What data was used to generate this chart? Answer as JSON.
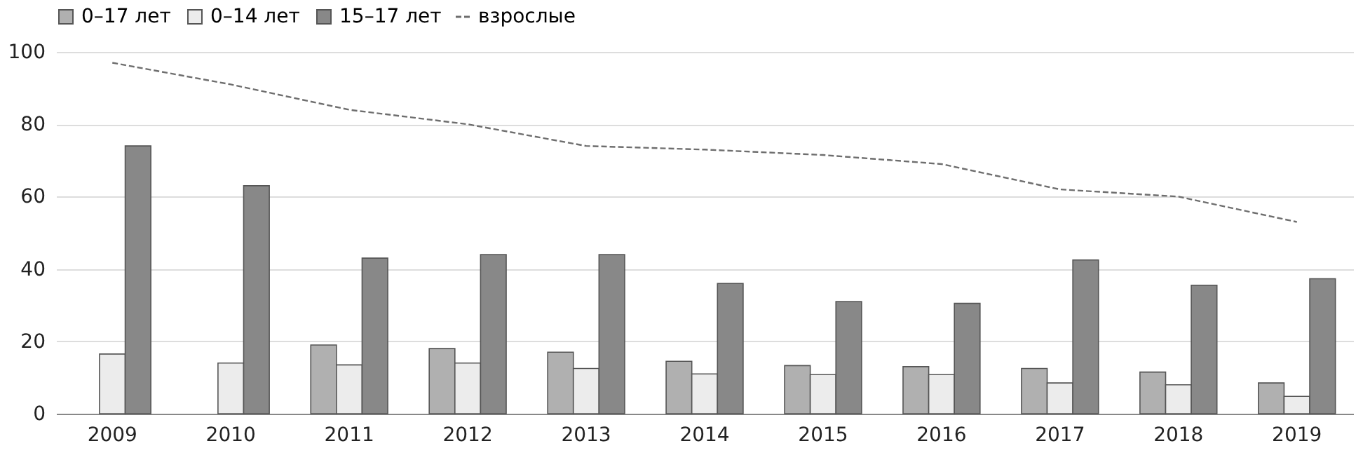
{
  "chart_data": {
    "type": "bar",
    "categories": [
      "2009",
      "2010",
      "2011",
      "2012",
      "2013",
      "2014",
      "2015",
      "2016",
      "2017",
      "2018",
      "2019"
    ],
    "series": [
      {
        "name": "0–17 лет",
        "color": "#b0b0b0",
        "values": [
          null,
          null,
          19,
          18,
          17,
          14.5,
          13.3,
          13,
          12.5,
          11.5,
          8.5
        ]
      },
      {
        "name": "0–14 лет",
        "color": "#ececec",
        "values": [
          16.5,
          14,
          13.5,
          14,
          12.5,
          11,
          10.8,
          10.8,
          8.5,
          8,
          4.8
        ]
      },
      {
        "name": "15–17 лет",
        "color": "#888888",
        "values": [
          74,
          63,
          43,
          44,
          44,
          36,
          31,
          30.5,
          42.5,
          35.5,
          37.3
        ]
      },
      {
        "name": "взрослые",
        "type": "line",
        "line_style": "dashed",
        "color": "#6e6e6e",
        "values": [
          97,
          91,
          84,
          80,
          74,
          73,
          71.5,
          69,
          62,
          60,
          53
        ]
      }
    ],
    "ylim": [
      0,
      100
    ],
    "yticks": [
      0,
      20,
      40,
      60,
      80,
      100
    ],
    "grid": "y",
    "legend": "top"
  }
}
